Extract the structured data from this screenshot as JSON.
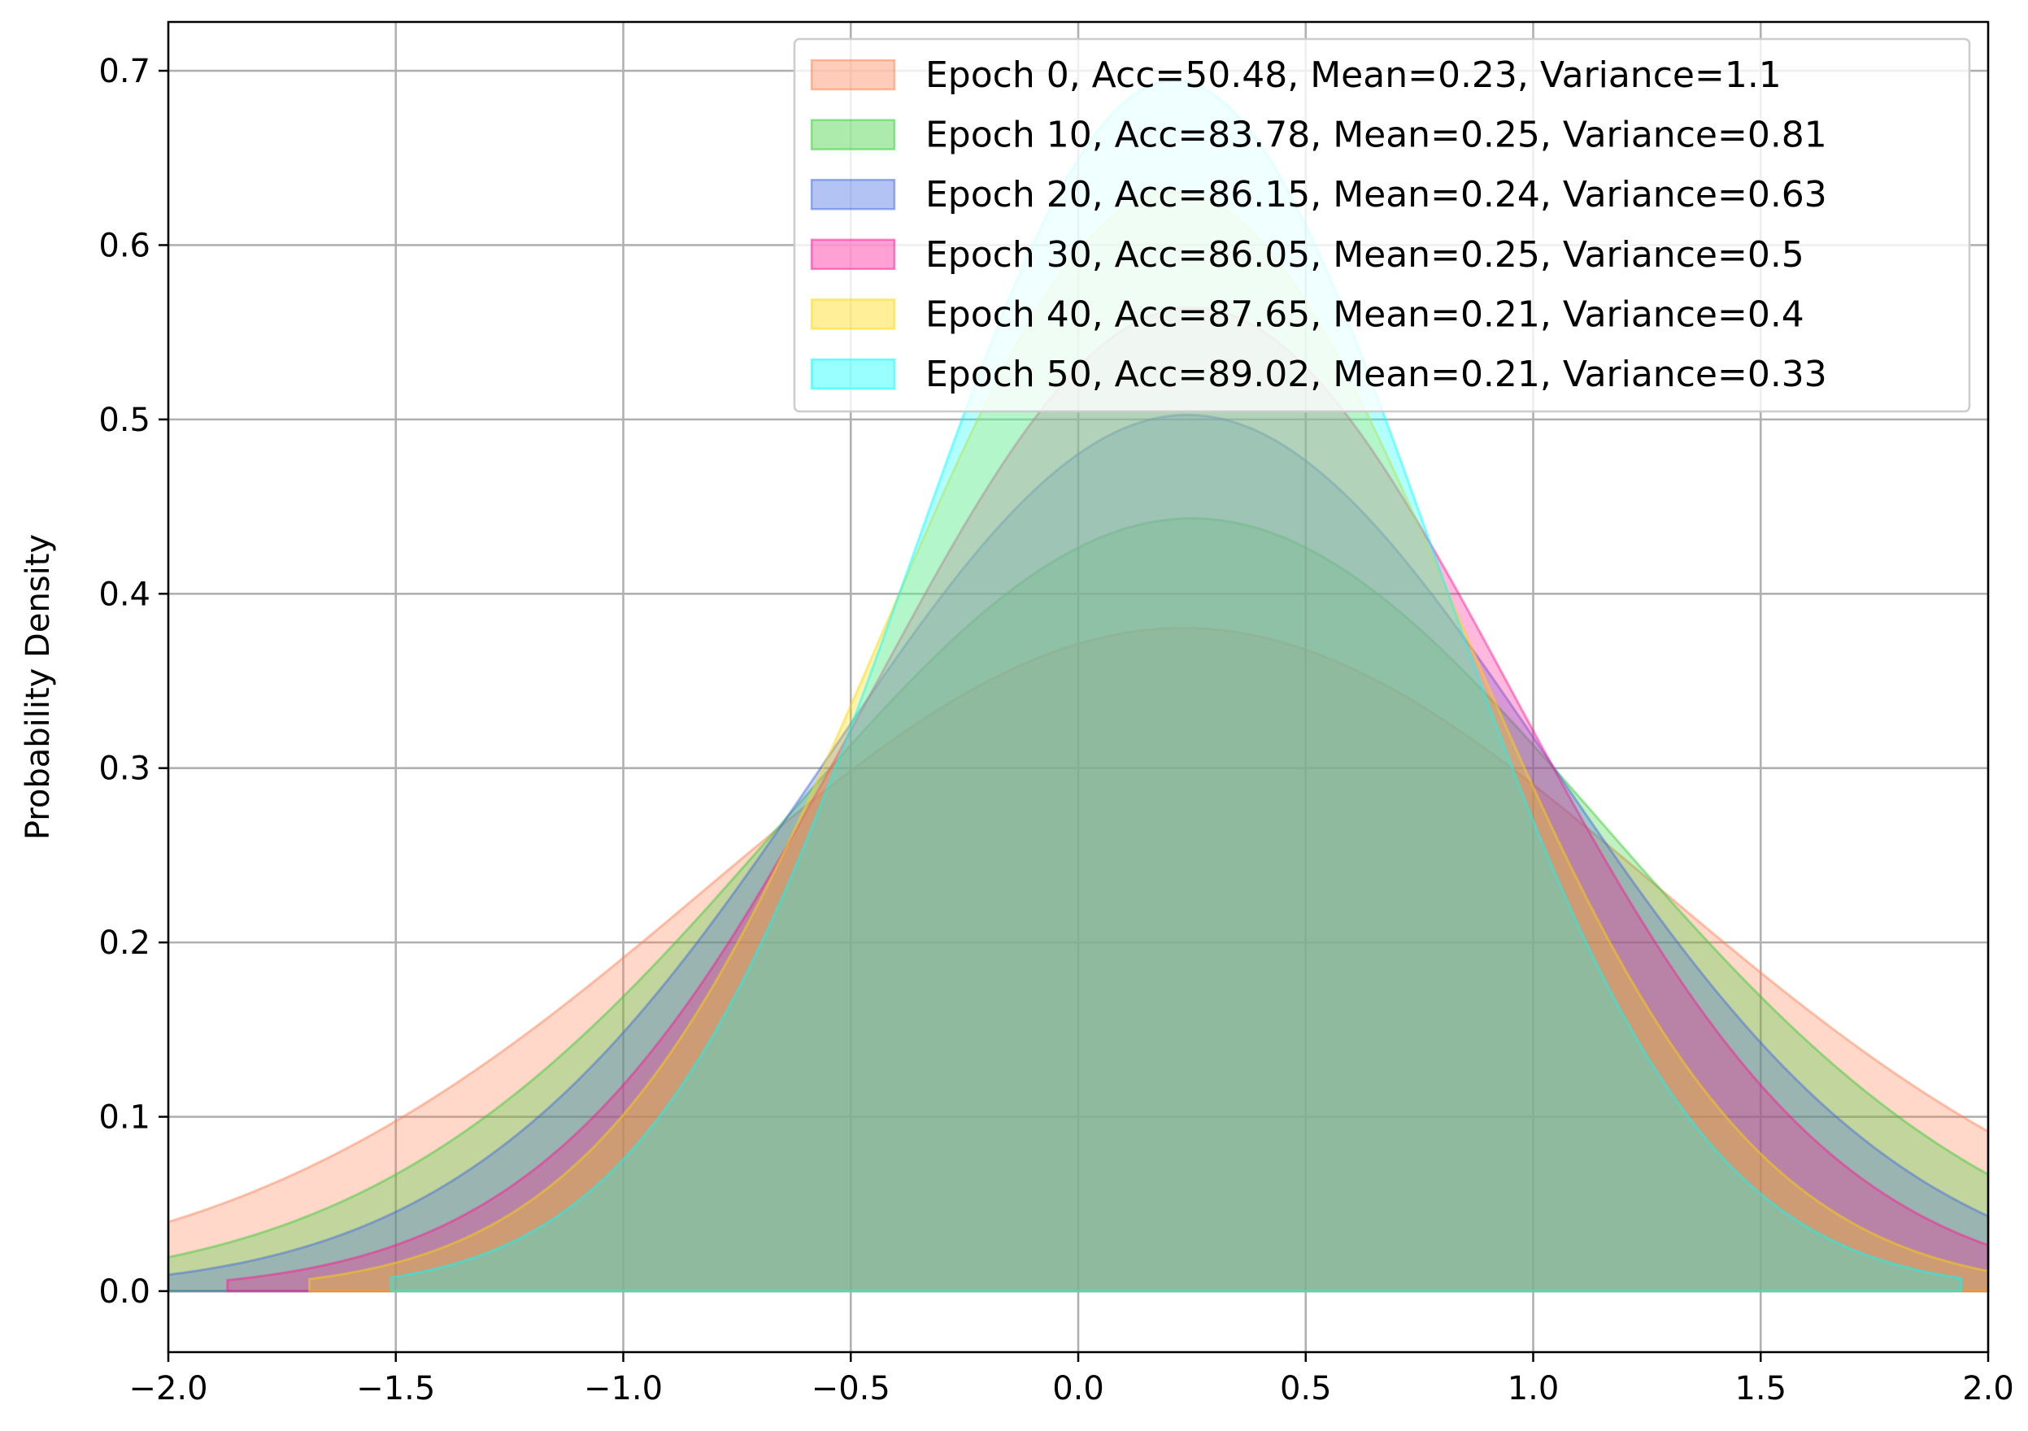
{
  "chart_data": {
    "type": "area",
    "xlabel": "",
    "ylabel": "Probability Density",
    "xlim": [
      -2.0,
      2.0
    ],
    "ylim": [
      -0.035,
      0.728
    ],
    "grid": true,
    "legend_position": "top-right",
    "x_ticks": [
      -2.0,
      -1.5,
      -1.0,
      -0.5,
      0.0,
      0.5,
      1.0,
      1.5,
      2.0
    ],
    "x_tick_labels": [
      "−2.0",
      "−1.5",
      "−1.0",
      "−0.5",
      "0.0",
      "0.5",
      "1.0",
      "1.5",
      "2.0"
    ],
    "y_ticks": [
      0.0,
      0.1,
      0.2,
      0.3,
      0.4,
      0.5,
      0.6,
      0.7
    ],
    "y_tick_labels": [
      "0.0",
      "0.1",
      "0.2",
      "0.3",
      "0.4",
      "0.5",
      "0.6",
      "0.7"
    ],
    "series": [
      {
        "name": "Epoch 0, Acc=50.48, Mean=0.23, Variance=1.1",
        "mean": 0.23,
        "variance": 1.1,
        "x_range": [
          -2.0,
          2.0
        ],
        "color": "#FF7F50"
      },
      {
        "name": "Epoch 10, Acc=83.78, Mean=0.25, Variance=0.81",
        "mean": 0.25,
        "variance": 0.81,
        "x_range": [
          -2.0,
          2.0
        ],
        "color": "#32CD32"
      },
      {
        "name": "Epoch 20, Acc=86.15, Mean=0.24, Variance=0.63",
        "mean": 0.24,
        "variance": 0.63,
        "x_range": [
          -2.0,
          2.0
        ],
        "color": "#4169E1"
      },
      {
        "name": "Epoch 30, Acc=86.05, Mean=0.25, Variance=0.5",
        "mean": 0.25,
        "variance": 0.5,
        "x_range": [
          -1.87,
          2.0
        ],
        "color": "#FF1493"
      },
      {
        "name": "Epoch 40, Acc=87.65, Mean=0.21, Variance=0.4",
        "mean": 0.21,
        "variance": 0.4,
        "x_range": [
          -1.69,
          2.0
        ],
        "color": "#FFD700"
      },
      {
        "name": "Epoch 50, Acc=89.02, Mean=0.21, Variance=0.33",
        "mean": 0.21,
        "variance": 0.33,
        "x_range": [
          -1.51,
          1.94
        ],
        "color": "#00FFFF"
      }
    ]
  }
}
